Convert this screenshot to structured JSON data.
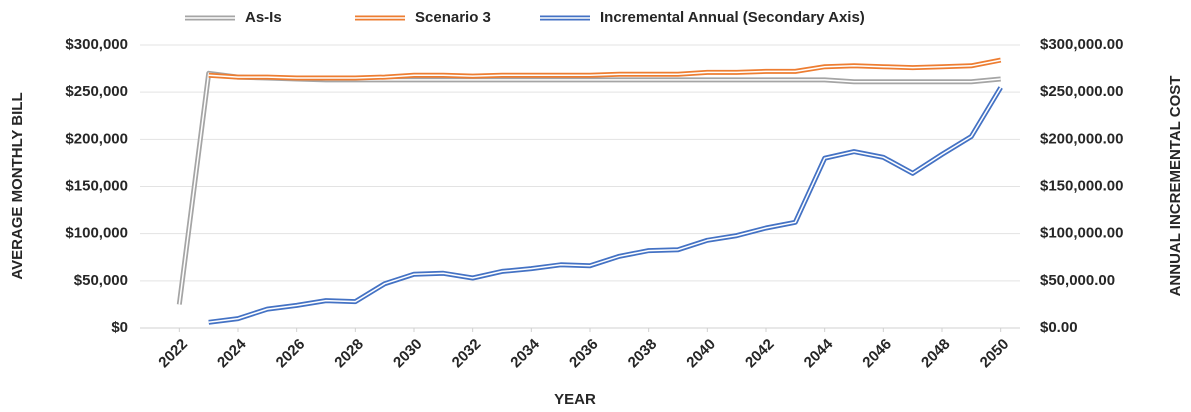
{
  "chart_data": {
    "type": "line",
    "xlabel": "YEAR",
    "ylabel": "AVERAGE MONTHLY BILL",
    "y2label": "ANNUAL INCREMENTAL COST",
    "x": [
      2022,
      2023,
      2024,
      2025,
      2026,
      2027,
      2028,
      2029,
      2030,
      2031,
      2032,
      2033,
      2034,
      2035,
      2036,
      2037,
      2038,
      2039,
      2040,
      2041,
      2042,
      2043,
      2044,
      2045,
      2046,
      2047,
      2048,
      2049,
      2050
    ],
    "xlim": [
      2021,
      2051
    ],
    "xticks": [
      2022,
      2024,
      2026,
      2028,
      2030,
      2032,
      2034,
      2036,
      2038,
      2040,
      2042,
      2044,
      2046,
      2048,
      2050
    ],
    "ylim": [
      0,
      300000
    ],
    "yticks": [
      {
        "value": 0,
        "label": "$0"
      },
      {
        "value": 50000,
        "label": "$50,000"
      },
      {
        "value": 100000,
        "label": "$100,000"
      },
      {
        "value": 150000,
        "label": "$150,000"
      },
      {
        "value": 200000,
        "label": "$200,000"
      },
      {
        "value": 250000,
        "label": "$250,000"
      },
      {
        "value": 300000,
        "label": "$300,000"
      }
    ],
    "y2lim": [
      0,
      300000
    ],
    "y2ticks": [
      {
        "value": 0,
        "label": "$0.00"
      },
      {
        "value": 50000,
        "label": "$50,000.00"
      },
      {
        "value": 100000,
        "label": "$100,000.00"
      },
      {
        "value": 150000,
        "label": "$150,000.00"
      },
      {
        "value": 200000,
        "label": "$200,000.00"
      },
      {
        "value": 250000,
        "label": "$250,000.00"
      },
      {
        "value": 300000,
        "label": "$300,000.00"
      }
    ],
    "grid": true,
    "legend": "top",
    "series": [
      {
        "name": "As-Is",
        "color": "#a5a5a5",
        "values": [
          25000,
          270000,
          266000,
          265000,
          264000,
          263000,
          263000,
          263000,
          263000,
          263000,
          263000,
          263000,
          263000,
          263000,
          263000,
          263000,
          263000,
          263000,
          263000,
          263000,
          263000,
          263000,
          263000,
          261000,
          261000,
          261000,
          261000,
          261000,
          264000
        ]
      },
      {
        "name": "Scenario 3",
        "color": "#ed7d31",
        "values": [
          null,
          268000,
          266000,
          266000,
          265000,
          265000,
          265000,
          266000,
          268000,
          268000,
          267000,
          268000,
          268000,
          268000,
          268000,
          269000,
          269000,
          269000,
          271000,
          271000,
          272000,
          272000,
          277000,
          278000,
          277000,
          276000,
          277000,
          278000,
          284000
        ]
      },
      {
        "name": "Incremental Annual (Secondary Axis)",
        "color": "#4472c4",
        "axis": "y2",
        "values": [
          null,
          6000,
          10000,
          20000,
          24000,
          29000,
          28000,
          47000,
          57000,
          58000,
          53000,
          60000,
          63000,
          67000,
          66000,
          76000,
          82000,
          83000,
          93000,
          98000,
          106000,
          112000,
          180000,
          187000,
          181000,
          164000,
          184000,
          203000,
          255000
        ]
      }
    ]
  }
}
